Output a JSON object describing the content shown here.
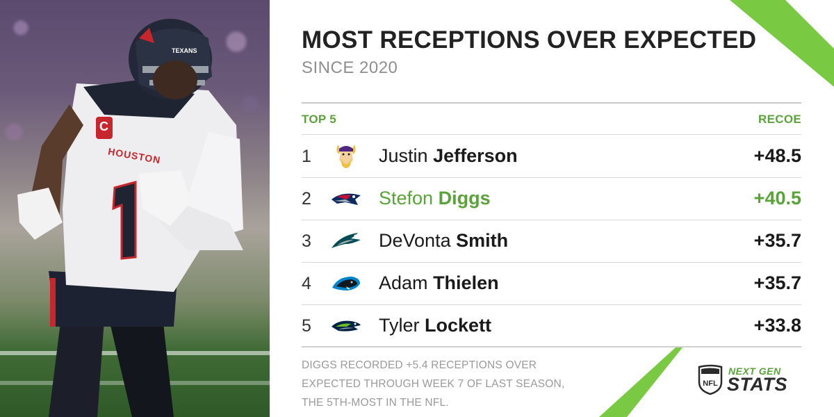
{
  "header": {
    "title": "MOST RECEPTIONS OVER EXPECTED",
    "subtitle": "SINCE 2020"
  },
  "table": {
    "left_header": "TOP 5",
    "right_header": "RECOE",
    "rows": [
      {
        "rank": "1",
        "first": "Justin",
        "last": "Jefferson",
        "value": "+48.5",
        "team_icon": "vikings-logo-icon",
        "highlight": false
      },
      {
        "rank": "2",
        "first": "Stefon",
        "last": "Diggs",
        "value": "+40.5",
        "team_icon": "patriots-logo-icon",
        "highlight": true
      },
      {
        "rank": "3",
        "first": "DeVonta",
        "last": "Smith",
        "value": "+35.7",
        "team_icon": "eagles-logo-icon",
        "highlight": false
      },
      {
        "rank": "4",
        "first": "Adam",
        "last": "Thielen",
        "value": "+35.7",
        "team_icon": "panthers-logo-icon",
        "highlight": false
      },
      {
        "rank": "5",
        "first": "Tyler",
        "last": "Lockett",
        "value": "+33.8",
        "team_icon": "seahawks-logo-icon",
        "highlight": false
      }
    ]
  },
  "footnote": {
    "lines": [
      "DIGGS RECORDED +5.4 RECEPTIONS OVER",
      "EXPECTED THROUGH WEEK 7 OF LAST SEASON,",
      "THE 5TH-MOST IN THE NFL."
    ]
  },
  "brand": {
    "line1": "NEXT GEN",
    "line2": "STATS",
    "shield_text": "NFL"
  },
  "photo": {
    "jersey_city": "HOUSTON",
    "jersey_number": "1",
    "helmet_text": "TEXANS",
    "captain_patch": "C"
  },
  "colors": {
    "accent": "#5aa339",
    "accent_bright": "#7ac943",
    "title": "#222222",
    "subtitle": "#8e8e8e"
  }
}
